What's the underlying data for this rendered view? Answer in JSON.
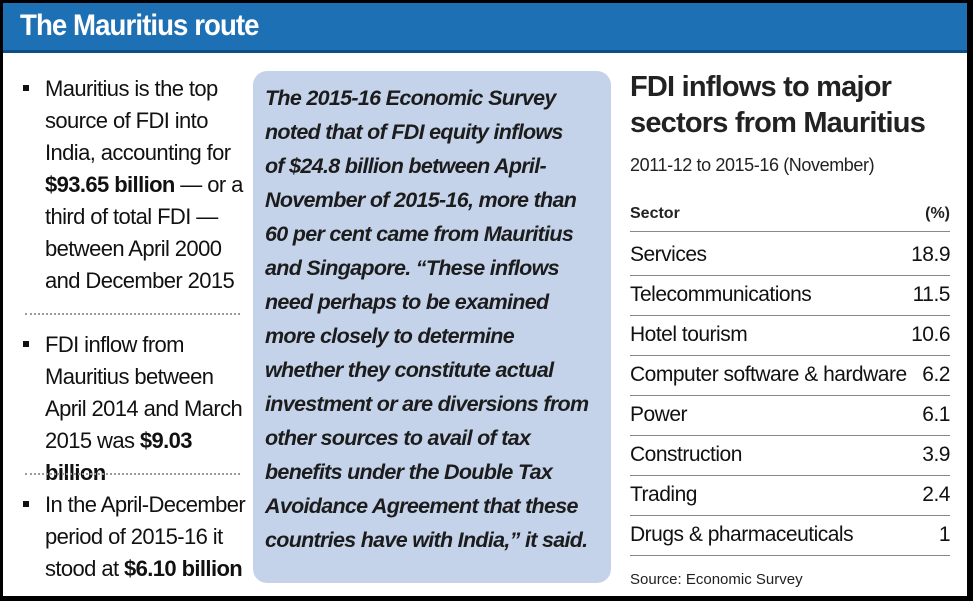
{
  "header": {
    "title": "The Mauritius route"
  },
  "bullets": [
    {
      "lines": [
        "Mauritius is the top",
        "source of FDI into",
        "India, accounting for"
      ],
      "bold_line": "$93.65 billion",
      "bold_line_rest": " — or a",
      "tail_lines": [
        "third of total FDI —",
        "between April 2000",
        "and December 2015"
      ]
    },
    {
      "lines": [
        "FDI inflow from",
        "Mauritius between",
        "April 2014 and March"
      ],
      "last_prefix": "2015 was ",
      "last_bold": "$9.03 billion"
    },
    {
      "lines": [
        "In the April-December",
        "period of 2015-16 it"
      ],
      "last_prefix": "stood at ",
      "last_bold": "$6.10 billion"
    }
  ],
  "quote": {
    "lines": [
      "The 2015-16 Economic Survey",
      "noted that of FDI equity inflows",
      "of $24.8 billion between April-",
      "November of 2015-16, more than",
      "60 per cent came from Mauritius",
      "and Singapore. “These inflows",
      "need perhaps to be examined",
      "more closely to determine",
      "whether they constitute actual",
      "investment or are diversions from",
      "other sources to avail of tax",
      "benefits under the Double Tax",
      "Avoidance Agreement that these",
      "countries have with India,” it said."
    ]
  },
  "table": {
    "title_line1": "FDI inflows to major",
    "title_line2": "sectors from Mauritius",
    "subtitle": "2011-12 to 2015-16 (November)",
    "col_sector": "Sector",
    "col_pct": "(%)",
    "rows": [
      {
        "sector": "Services",
        "pct": "18.9"
      },
      {
        "sector": "Telecommunications",
        "pct": "11.5"
      },
      {
        "sector": "Hotel tourism",
        "pct": "10.6"
      },
      {
        "sector": "Computer software & hardware",
        "pct": "6.2"
      },
      {
        "sector": "Power",
        "pct": "6.1"
      },
      {
        "sector": "Construction",
        "pct": "3.9"
      },
      {
        "sector": "Trading",
        "pct": "2.4"
      },
      {
        "sector": "Drugs & pharmaceuticals",
        "pct": "1"
      }
    ],
    "source": "Source: Economic Survey"
  },
  "colors": {
    "header_bg": "#1d70b3",
    "quote_bg": "#c5d3ea"
  }
}
